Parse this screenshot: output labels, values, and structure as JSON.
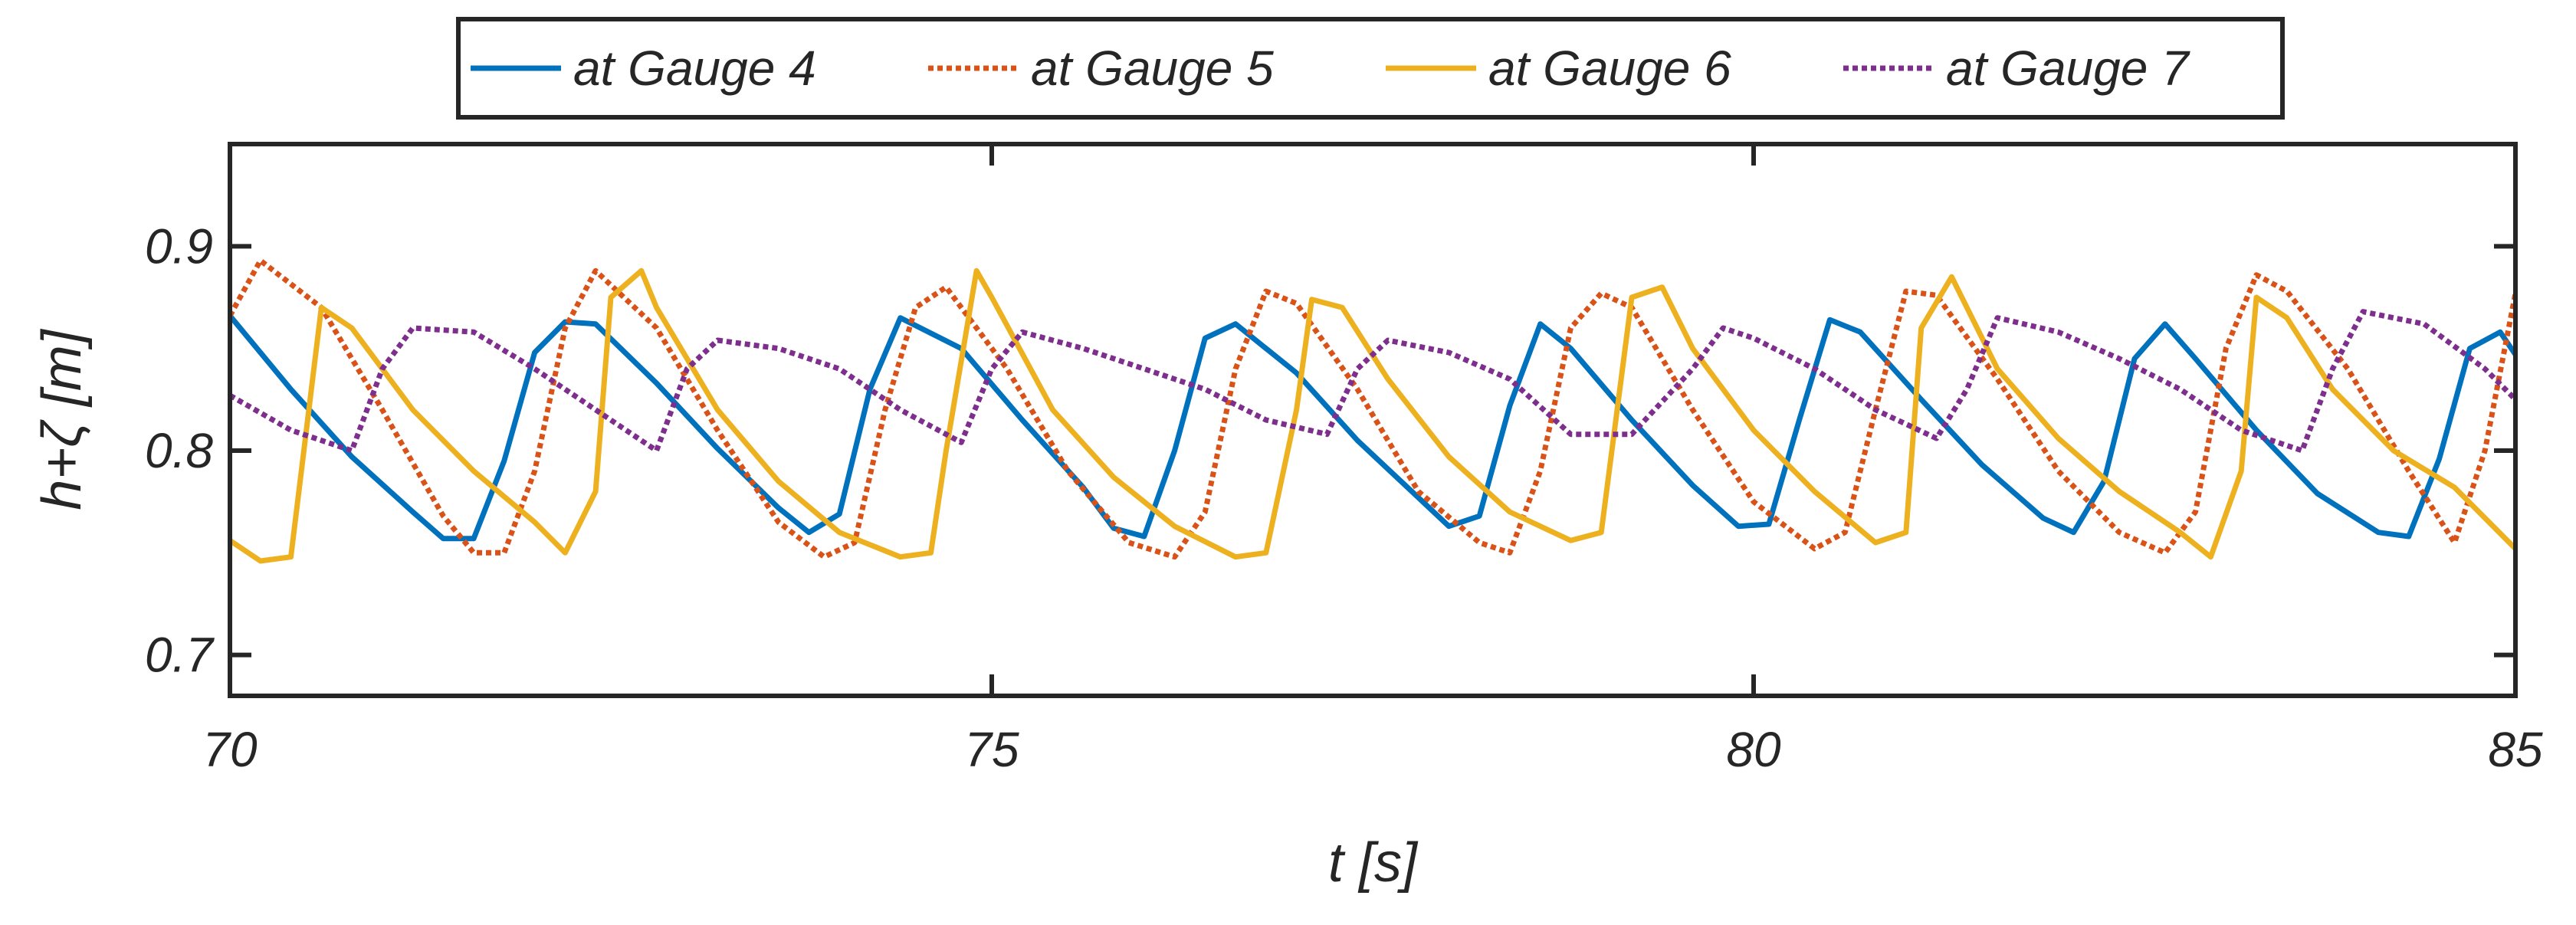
{
  "chart_data": {
    "type": "line",
    "xlabel": "t [s]",
    "ylabel": "h+ζ [m]",
    "xlim": [
      70,
      85
    ],
    "ylim": [
      0.68,
      0.95
    ],
    "xticks": [
      70,
      75,
      80,
      85
    ],
    "xtick_labels": [
      "70",
      "75",
      "80",
      "85"
    ],
    "yticks": [
      0.7,
      0.8,
      0.9
    ],
    "ytick_labels": [
      "0.7",
      "0.8",
      "0.9"
    ],
    "grid": false,
    "legend_position": "top-outside",
    "legend_orientation": "horizontal",
    "series": [
      {
        "name": "at Gauge 4",
        "color": "#0072BD",
        "style": "solid",
        "x": [
          70.0,
          70.4,
          70.8,
          71.2,
          71.4,
          71.6,
          71.8,
          72.0,
          72.2,
          72.4,
          72.8,
          73.2,
          73.6,
          73.8,
          74.0,
          74.2,
          74.4,
          74.8,
          75.2,
          75.6,
          75.8,
          76.0,
          76.2,
          76.4,
          76.6,
          77.0,
          77.4,
          77.8,
          78.0,
          78.2,
          78.4,
          78.6,
          78.8,
          79.2,
          79.6,
          79.9,
          80.1,
          80.3,
          80.5,
          80.7,
          81.1,
          81.5,
          81.9,
          82.1,
          82.3,
          82.5,
          82.7,
          82.9,
          83.3,
          83.7,
          84.1,
          84.3,
          84.5,
          84.7,
          84.9,
          85.0
        ],
        "y": [
          0.866,
          0.83,
          0.797,
          0.77,
          0.757,
          0.757,
          0.795,
          0.848,
          0.863,
          0.862,
          0.833,
          0.801,
          0.772,
          0.76,
          0.769,
          0.83,
          0.865,
          0.85,
          0.815,
          0.782,
          0.762,
          0.758,
          0.8,
          0.855,
          0.862,
          0.838,
          0.805,
          0.777,
          0.763,
          0.768,
          0.822,
          0.862,
          0.85,
          0.815,
          0.783,
          0.763,
          0.764,
          0.815,
          0.864,
          0.858,
          0.825,
          0.793,
          0.767,
          0.76,
          0.785,
          0.845,
          0.862,
          0.845,
          0.81,
          0.779,
          0.76,
          0.758,
          0.796,
          0.85,
          0.858,
          0.847
        ]
      },
      {
        "name": "at Gauge 5",
        "color": "#D95319",
        "style": "dotted",
        "x": [
          70.0,
          70.2,
          70.6,
          71.0,
          71.4,
          71.6,
          71.8,
          72.0,
          72.2,
          72.4,
          72.8,
          73.2,
          73.6,
          73.9,
          74.1,
          74.3,
          74.5,
          74.7,
          75.1,
          75.5,
          75.9,
          76.2,
          76.4,
          76.6,
          76.8,
          77.0,
          77.4,
          77.8,
          78.2,
          78.4,
          78.6,
          78.8,
          79.0,
          79.2,
          79.6,
          80.0,
          80.4,
          80.6,
          80.8,
          81.0,
          81.2,
          81.6,
          82.0,
          82.4,
          82.7,
          82.9,
          83.1,
          83.3,
          83.5,
          83.9,
          84.3,
          84.6,
          84.8,
          85.0
        ],
        "y": [
          0.866,
          0.893,
          0.87,
          0.82,
          0.768,
          0.75,
          0.75,
          0.79,
          0.86,
          0.888,
          0.86,
          0.81,
          0.765,
          0.748,
          0.755,
          0.82,
          0.87,
          0.88,
          0.84,
          0.79,
          0.755,
          0.748,
          0.77,
          0.84,
          0.878,
          0.872,
          0.83,
          0.78,
          0.755,
          0.75,
          0.79,
          0.86,
          0.877,
          0.87,
          0.82,
          0.775,
          0.752,
          0.76,
          0.82,
          0.878,
          0.876,
          0.835,
          0.79,
          0.76,
          0.75,
          0.77,
          0.85,
          0.886,
          0.878,
          0.84,
          0.79,
          0.755,
          0.8,
          0.877
        ]
      },
      {
        "name": "at Gauge 6",
        "color": "#EDB120",
        "style": "solid",
        "x": [
          70.0,
          70.2,
          70.4,
          70.6,
          70.8,
          71.2,
          71.6,
          72.0,
          72.2,
          72.4,
          72.5,
          72.7,
          72.8,
          73.2,
          73.6,
          74.0,
          74.4,
          74.6,
          74.7,
          74.9,
          75.0,
          75.4,
          75.8,
          76.2,
          76.6,
          76.8,
          77.0,
          77.1,
          77.3,
          77.6,
          78.0,
          78.4,
          78.8,
          79.0,
          79.2,
          79.4,
          79.6,
          80.0,
          80.4,
          80.8,
          81.0,
          81.1,
          81.3,
          81.6,
          82.0,
          82.4,
          82.8,
          83.0,
          83.2,
          83.3,
          83.5,
          83.8,
          84.2,
          84.6,
          85.0
        ],
        "y": [
          0.756,
          0.746,
          0.748,
          0.87,
          0.86,
          0.82,
          0.79,
          0.765,
          0.75,
          0.78,
          0.875,
          0.888,
          0.87,
          0.82,
          0.785,
          0.76,
          0.748,
          0.75,
          0.8,
          0.888,
          0.875,
          0.82,
          0.787,
          0.763,
          0.748,
          0.75,
          0.82,
          0.874,
          0.87,
          0.835,
          0.797,
          0.77,
          0.756,
          0.76,
          0.875,
          0.88,
          0.85,
          0.81,
          0.78,
          0.755,
          0.76,
          0.86,
          0.885,
          0.84,
          0.806,
          0.78,
          0.76,
          0.748,
          0.79,
          0.875,
          0.865,
          0.83,
          0.8,
          0.782,
          0.752
        ]
      },
      {
        "name": "at Gauge 7",
        "color": "#7E2F8E",
        "style": "dotted",
        "x": [
          70.0,
          70.4,
          70.8,
          71.0,
          71.2,
          71.6,
          72.0,
          72.4,
          72.8,
          73.0,
          73.2,
          73.6,
          74.0,
          74.4,
          74.8,
          75.0,
          75.2,
          75.6,
          76.0,
          76.4,
          76.8,
          77.2,
          77.4,
          77.6,
          78.0,
          78.4,
          78.8,
          79.2,
          79.6,
          79.8,
          80.0,
          80.4,
          80.8,
          81.2,
          81.4,
          81.6,
          82.0,
          82.4,
          82.8,
          83.2,
          83.6,
          83.8,
          84.0,
          84.4,
          84.8,
          85.0
        ],
        "y": [
          0.827,
          0.81,
          0.8,
          0.84,
          0.86,
          0.858,
          0.84,
          0.82,
          0.8,
          0.84,
          0.854,
          0.85,
          0.84,
          0.82,
          0.804,
          0.84,
          0.858,
          0.85,
          0.84,
          0.83,
          0.815,
          0.808,
          0.84,
          0.854,
          0.848,
          0.835,
          0.808,
          0.808,
          0.84,
          0.86,
          0.855,
          0.84,
          0.82,
          0.806,
          0.83,
          0.865,
          0.858,
          0.845,
          0.83,
          0.81,
          0.8,
          0.84,
          0.868,
          0.862,
          0.84,
          0.825
        ]
      }
    ]
  }
}
